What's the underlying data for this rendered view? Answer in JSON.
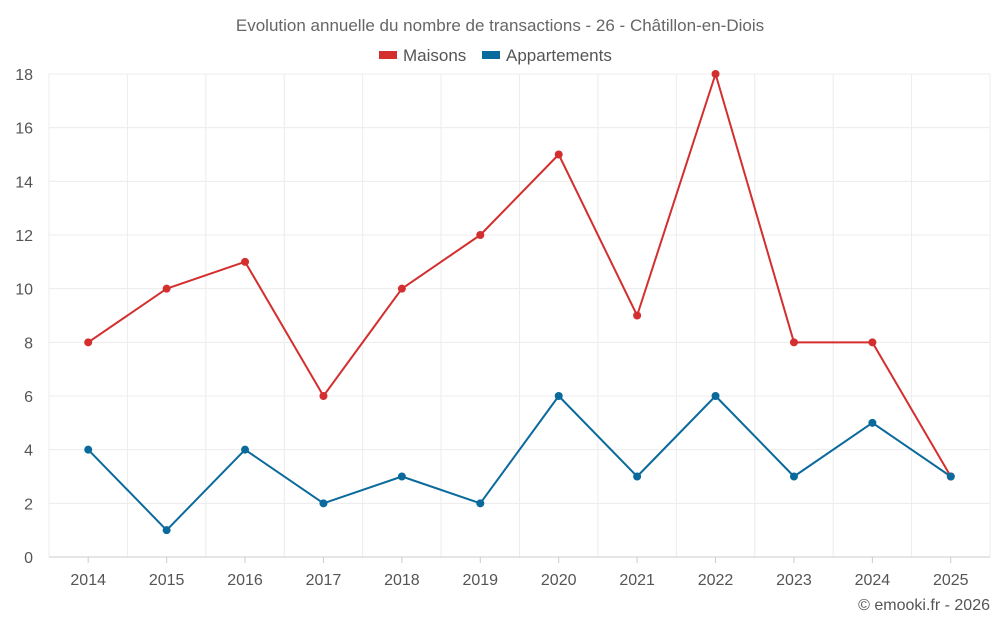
{
  "chart_data": {
    "type": "line",
    "title": "Evolution annuelle du nombre de transactions - 26 - Châtillon-en-Diois",
    "categories": [
      "2014",
      "2015",
      "2016",
      "2017",
      "2018",
      "2019",
      "2020",
      "2021",
      "2022",
      "2023",
      "2024",
      "2025"
    ],
    "series": [
      {
        "name": "Maisons",
        "color": "#d32f2f",
        "values": [
          8,
          10,
          11,
          6,
          10,
          12,
          15,
          9,
          18,
          8,
          8,
          3
        ]
      },
      {
        "name": "Appartements",
        "color": "#0b6a9c",
        "values": [
          4,
          1,
          4,
          2,
          3,
          2,
          6,
          3,
          6,
          3,
          5,
          3
        ]
      }
    ],
    "ylim": [
      0,
      18
    ],
    "yticks": [
      0,
      2,
      4,
      6,
      8,
      10,
      12,
      14,
      16,
      18
    ],
    "grid": true,
    "legend": "top-center",
    "xlabel": "",
    "ylabel": ""
  },
  "credit": "© emooki.fr - 2026"
}
